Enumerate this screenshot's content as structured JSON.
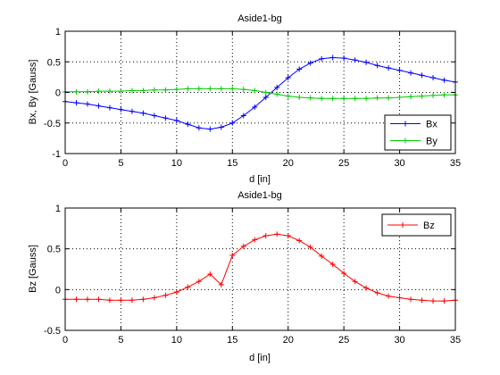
{
  "chart_data": [
    {
      "type": "line",
      "title": "Aside1-bg",
      "xlabel": "d [in]",
      "ylabel": "Bx, By [Gauss]",
      "xlim": [
        0,
        35
      ],
      "ylim": [
        -1,
        1
      ],
      "xticks": [
        0,
        5,
        10,
        15,
        20,
        25,
        30,
        35
      ],
      "yticks": [
        -1,
        -0.5,
        0,
        0.5,
        1
      ],
      "xtick_labels": [
        "0",
        "5",
        "10",
        "15",
        "20",
        "25",
        "30",
        "35"
      ],
      "ytick_labels": [
        "-1",
        "-0.5",
        "0",
        "0.5",
        "1"
      ],
      "grid": true,
      "legend_position": "bottom-right",
      "x": [
        0,
        1,
        2,
        3,
        4,
        5,
        6,
        7,
        8,
        9,
        10,
        11,
        12,
        13,
        14,
        15,
        16,
        17,
        18,
        19,
        20,
        21,
        22,
        23,
        24,
        25,
        26,
        27,
        28,
        29,
        30,
        31,
        32,
        33,
        34,
        35
      ],
      "series": [
        {
          "name": "Bx",
          "color": "#0000ff",
          "marker": "plus",
          "values": [
            -0.15,
            -0.17,
            -0.19,
            -0.22,
            -0.25,
            -0.28,
            -0.31,
            -0.34,
            -0.38,
            -0.42,
            -0.46,
            -0.52,
            -0.58,
            -0.6,
            -0.57,
            -0.5,
            -0.38,
            -0.24,
            -0.08,
            0.08,
            0.24,
            0.38,
            0.48,
            0.55,
            0.57,
            0.56,
            0.53,
            0.49,
            0.44,
            0.4,
            0.36,
            0.32,
            0.28,
            0.24,
            0.2,
            0.17
          ]
        },
        {
          "name": "By",
          "color": "#00cc00",
          "marker": "plus",
          "values": [
            0.01,
            0.01,
            0.01,
            0.02,
            0.02,
            0.02,
            0.03,
            0.03,
            0.04,
            0.04,
            0.05,
            0.06,
            0.06,
            0.06,
            0.06,
            0.06,
            0.05,
            0.03,
            0.0,
            -0.03,
            -0.06,
            -0.08,
            -0.09,
            -0.1,
            -0.1,
            -0.1,
            -0.1,
            -0.1,
            -0.09,
            -0.09,
            -0.08,
            -0.07,
            -0.06,
            -0.05,
            -0.04,
            -0.04
          ]
        }
      ]
    },
    {
      "type": "line",
      "title": "Aside1-bg",
      "xlabel": "d [in]",
      "ylabel": "Bz [Gauss]",
      "xlim": [
        0,
        35
      ],
      "ylim": [
        -0.5,
        1
      ],
      "xticks": [
        0,
        5,
        10,
        15,
        20,
        25,
        30,
        35
      ],
      "yticks": [
        -0.5,
        0,
        0.5,
        1
      ],
      "xtick_labels": [
        "0",
        "5",
        "10",
        "15",
        "20",
        "25",
        "30",
        "35"
      ],
      "ytick_labels": [
        "-0.5",
        "0",
        "0.5",
        "1"
      ],
      "grid": true,
      "legend_position": "top-right",
      "x": [
        0,
        1,
        2,
        3,
        4,
        5,
        6,
        7,
        8,
        9,
        10,
        11,
        12,
        13,
        14,
        15,
        16,
        17,
        18,
        19,
        20,
        21,
        22,
        23,
        24,
        25,
        26,
        27,
        28,
        29,
        30,
        31,
        32,
        33,
        34,
        35
      ],
      "series": [
        {
          "name": "Bz",
          "color": "#ff0000",
          "marker": "plus",
          "values": [
            -0.12,
            -0.12,
            -0.12,
            -0.12,
            -0.13,
            -0.13,
            -0.13,
            -0.12,
            -0.1,
            -0.07,
            -0.03,
            0.03,
            0.1,
            0.19,
            0.06,
            0.42,
            0.53,
            0.61,
            0.66,
            0.68,
            0.66,
            0.6,
            0.52,
            0.41,
            0.31,
            0.2,
            0.1,
            0.02,
            -0.04,
            -0.08,
            -0.1,
            -0.12,
            -0.13,
            -0.14,
            -0.14,
            -0.13
          ]
        }
      ]
    }
  ]
}
